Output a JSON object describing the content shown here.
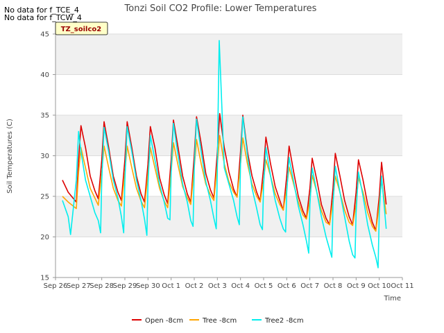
{
  "nodata_messages": [
    "No data for f_TCE_4",
    "No data for f_TCW_4"
  ],
  "site_tag": "TZ_soilco2",
  "colors": {
    "open": "#dd0000",
    "tree": "#ffa500",
    "tree2": "#00eeee",
    "band": "#f0f0f0",
    "tag_bg": "#ffffc8",
    "tag_text": "#990000"
  },
  "chart_data": {
    "type": "line",
    "title": "Tonzi Soil CO2 Profile: Lower Temperatures",
    "xlabel": "Time",
    "ylabel": "Soil Temperatures (C)",
    "xlim": [
      0,
      15
    ],
    "ylim": [
      15,
      45
    ],
    "x_ticks": [
      {
        "x": 0,
        "label": "Sep 26"
      },
      {
        "x": 1,
        "label": "Sep 27"
      },
      {
        "x": 2,
        "label": "Sep 28"
      },
      {
        "x": 3,
        "label": "Sep 29"
      },
      {
        "x": 4,
        "label": "Sep 30"
      },
      {
        "x": 5,
        "label": "Oct 1"
      },
      {
        "x": 6,
        "label": "Oct 2"
      },
      {
        "x": 7,
        "label": "Oct 3"
      },
      {
        "x": 8,
        "label": "Oct 4"
      },
      {
        "x": 9,
        "label": "Oct 5"
      },
      {
        "x": 10,
        "label": "Oct 6"
      },
      {
        "x": 11,
        "label": "Oct 7"
      },
      {
        "x": 12,
        "label": "Oct 8"
      },
      {
        "x": 13,
        "label": "Oct 9"
      },
      {
        "x": 14,
        "label": "Oct 10"
      },
      {
        "x": 15,
        "label": "Oct 11"
      }
    ],
    "y_ticks": [
      15,
      20,
      25,
      30,
      35,
      40,
      45
    ],
    "grid": true,
    "legend_position": "bottom",
    "series": [
      {
        "name": "Open -8cm",
        "color": "#dd0000",
        "x": [
          0.3,
          0.55,
          0.9,
          1.0,
          1.1,
          1.3,
          1.5,
          1.7,
          1.85,
          2.0,
          2.1,
          2.3,
          2.5,
          2.7,
          2.85,
          3.0,
          3.1,
          3.3,
          3.5,
          3.7,
          3.85,
          4.0,
          4.1,
          4.3,
          4.5,
          4.7,
          4.85,
          5.0,
          5.1,
          5.3,
          5.5,
          5.7,
          5.85,
          6.0,
          6.1,
          6.3,
          6.5,
          6.7,
          6.85,
          7.0,
          7.1,
          7.3,
          7.5,
          7.7,
          7.85,
          8.0,
          8.1,
          8.3,
          8.5,
          8.7,
          8.85,
          9.0,
          9.1,
          9.3,
          9.5,
          9.7,
          9.85,
          10.0,
          10.1,
          10.3,
          10.5,
          10.7,
          10.85,
          11.0,
          11.1,
          11.3,
          11.5,
          11.7,
          11.85,
          12.0,
          12.1,
          12.3,
          12.5,
          12.7,
          12.85,
          13.0,
          13.1,
          13.3,
          13.5,
          13.7,
          13.85,
          14.0,
          14.1,
          14.3
        ],
        "y": [
          27.0,
          25.5,
          24.3,
          29.5,
          33.7,
          31.0,
          27.5,
          25.7,
          24.7,
          29.5,
          34.2,
          31.0,
          27.5,
          25.5,
          24.5,
          29.5,
          34.2,
          31.0,
          27.5,
          25.3,
          24.3,
          29.0,
          33.6,
          31.0,
          27.3,
          25.2,
          24.1,
          29.5,
          34.4,
          31.0,
          27.5,
          25.3,
          24.3,
          30.0,
          34.8,
          31.5,
          27.8,
          25.8,
          24.8,
          30.5,
          35.2,
          31.0,
          28.0,
          25.9,
          24.9,
          30.5,
          35.0,
          30.5,
          27.5,
          25.5,
          24.4,
          28.5,
          32.3,
          29.0,
          26.2,
          24.5,
          23.3,
          27.5,
          31.2,
          28.0,
          25.0,
          23.2,
          22.3,
          26.0,
          29.7,
          27.0,
          24.0,
          22.3,
          21.5,
          26.0,
          30.3,
          27.5,
          24.5,
          22.5,
          21.5,
          25.5,
          29.5,
          27.0,
          24.0,
          21.8,
          20.8,
          25.0,
          29.2,
          24.0
        ]
      },
      {
        "name": "Tree -8cm",
        "color": "#ffa500",
        "x": [
          0.3,
          0.55,
          0.9,
          1.0,
          1.1,
          1.3,
          1.5,
          1.7,
          1.85,
          2.0,
          2.1,
          2.3,
          2.5,
          2.7,
          2.85,
          3.0,
          3.1,
          3.3,
          3.5,
          3.7,
          3.85,
          4.0,
          4.1,
          4.3,
          4.5,
          4.7,
          4.85,
          5.0,
          5.1,
          5.3,
          5.5,
          5.7,
          5.85,
          6.0,
          6.1,
          6.3,
          6.5,
          6.7,
          6.85,
          7.0,
          7.1,
          7.3,
          7.5,
          7.7,
          7.85,
          8.0,
          8.1,
          8.3,
          8.5,
          8.7,
          8.85,
          9.0,
          9.1,
          9.3,
          9.5,
          9.7,
          9.85,
          10.0,
          10.1,
          10.3,
          10.5,
          10.7,
          10.85,
          11.0,
          11.1,
          11.3,
          11.5,
          11.7,
          11.85,
          12.0,
          12.1,
          12.3,
          12.5,
          12.7,
          12.85,
          13.0,
          13.1,
          13.3,
          13.5,
          13.7,
          13.85,
          14.0,
          14.1,
          14.3
        ],
        "y": [
          25.0,
          24.3,
          23.5,
          28.0,
          31.0,
          28.5,
          26.0,
          24.8,
          23.9,
          28.0,
          31.2,
          28.5,
          26.0,
          24.5,
          23.8,
          28.0,
          31.2,
          28.5,
          26.0,
          24.4,
          23.6,
          27.8,
          31.0,
          28.5,
          26.0,
          24.4,
          23.6,
          28.0,
          31.6,
          28.8,
          26.2,
          24.8,
          24.0,
          28.5,
          32.0,
          29.0,
          26.5,
          25.2,
          24.5,
          29.0,
          32.5,
          29.0,
          26.8,
          25.5,
          24.9,
          29.0,
          32.2,
          29.0,
          26.5,
          25.0,
          24.3,
          27.0,
          29.5,
          27.5,
          25.3,
          24.0,
          23.3,
          26.0,
          28.6,
          26.5,
          24.3,
          22.7,
          22.2,
          24.5,
          27.6,
          25.5,
          23.2,
          21.8,
          21.5,
          24.5,
          27.5,
          25.5,
          23.3,
          21.8,
          21.4,
          24.0,
          27.3,
          25.5,
          23.0,
          21.3,
          20.7,
          24.0,
          27.0,
          22.8
        ]
      },
      {
        "name": "Tree2 -8cm",
        "color": "#00eeee",
        "x": [
          0.3,
          0.55,
          0.65,
          0.9,
          1.0,
          1.1,
          1.3,
          1.5,
          1.7,
          1.85,
          1.95,
          2.0,
          2.1,
          2.3,
          2.5,
          2.7,
          2.85,
          2.95,
          3.0,
          3.1,
          3.3,
          3.5,
          3.7,
          3.85,
          3.95,
          4.0,
          4.1,
          4.3,
          4.5,
          4.7,
          4.85,
          4.95,
          5.0,
          5.1,
          5.3,
          5.5,
          5.7,
          5.85,
          5.95,
          6.0,
          6.1,
          6.3,
          6.5,
          6.7,
          6.85,
          6.95,
          7.0,
          7.03,
          7.08,
          7.3,
          7.5,
          7.7,
          7.85,
          7.95,
          8.0,
          8.1,
          8.3,
          8.5,
          8.7,
          8.85,
          8.95,
          9.0,
          9.1,
          9.3,
          9.5,
          9.7,
          9.85,
          9.95,
          10.0,
          10.1,
          10.3,
          10.5,
          10.7,
          10.85,
          10.95,
          11.0,
          11.1,
          11.3,
          11.5,
          11.7,
          11.85,
          11.95,
          12.0,
          12.1,
          12.3,
          12.5,
          12.7,
          12.85,
          12.95,
          13.0,
          13.1,
          13.3,
          13.5,
          13.7,
          13.85,
          13.95,
          14.0,
          14.1,
          14.3
        ],
        "y": [
          24.5,
          22.5,
          20.3,
          27.0,
          33.0,
          30.5,
          27.0,
          25.0,
          23.0,
          22.0,
          20.5,
          27.0,
          33.5,
          30.5,
          27.0,
          24.8,
          22.5,
          20.5,
          27.0,
          33.6,
          30.5,
          27.0,
          24.5,
          22.2,
          20.2,
          26.5,
          32.5,
          29.5,
          26.5,
          24.3,
          22.3,
          22.1,
          28.0,
          34.0,
          30.0,
          26.5,
          24.3,
          22.0,
          21.3,
          28.5,
          34.5,
          30.5,
          26.8,
          24.5,
          22.3,
          21.0,
          28.5,
          35.0,
          44.2,
          28.5,
          26.5,
          24.5,
          22.5,
          21.5,
          29.0,
          34.8,
          30.0,
          26.0,
          23.5,
          21.5,
          20.9,
          26.5,
          31.0,
          27.5,
          24.5,
          22.3,
          21.0,
          20.6,
          25.5,
          29.8,
          26.8,
          23.8,
          21.5,
          19.5,
          18.0,
          24.0,
          28.5,
          25.5,
          22.5,
          20.0,
          18.5,
          17.5,
          24.0,
          28.7,
          25.5,
          22.5,
          19.5,
          17.8,
          17.4,
          23.0,
          28.0,
          25.0,
          21.5,
          19.0,
          17.5,
          16.2,
          23.0,
          27.5,
          21.0
        ]
      }
    ]
  }
}
